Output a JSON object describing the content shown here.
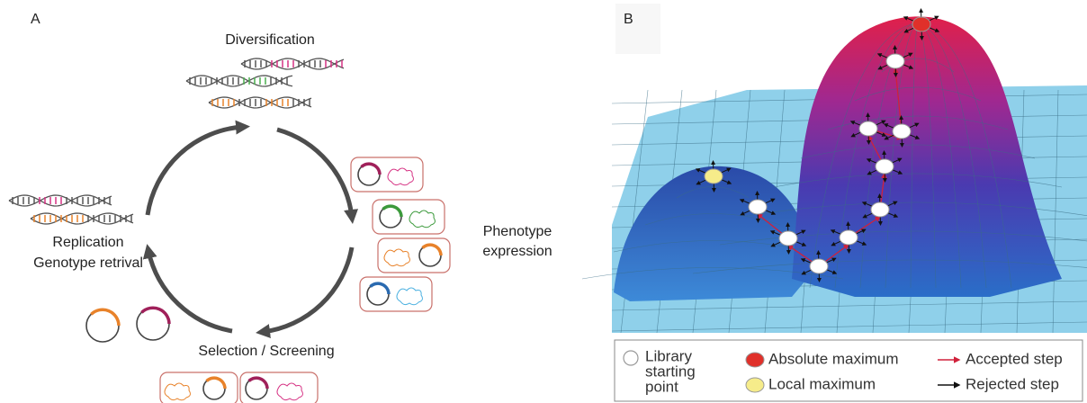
{
  "panel_a": {
    "label": "A",
    "stages": {
      "diversification": "Diversification",
      "phenotype": [
        "Phenotype",
        "expression"
      ],
      "selection": "Selection / Screening",
      "replication": [
        "Replication",
        "Genotype retrival"
      ]
    }
  },
  "panel_b": {
    "label": "B",
    "legend": [
      {
        "label": [
          "Library",
          "starting",
          "point"
        ]
      },
      {
        "label": "Absolute maximum"
      },
      {
        "label": "Local maximum"
      },
      {
        "label": "Accepted step"
      },
      {
        "label": "Rejected step"
      }
    ]
  }
}
